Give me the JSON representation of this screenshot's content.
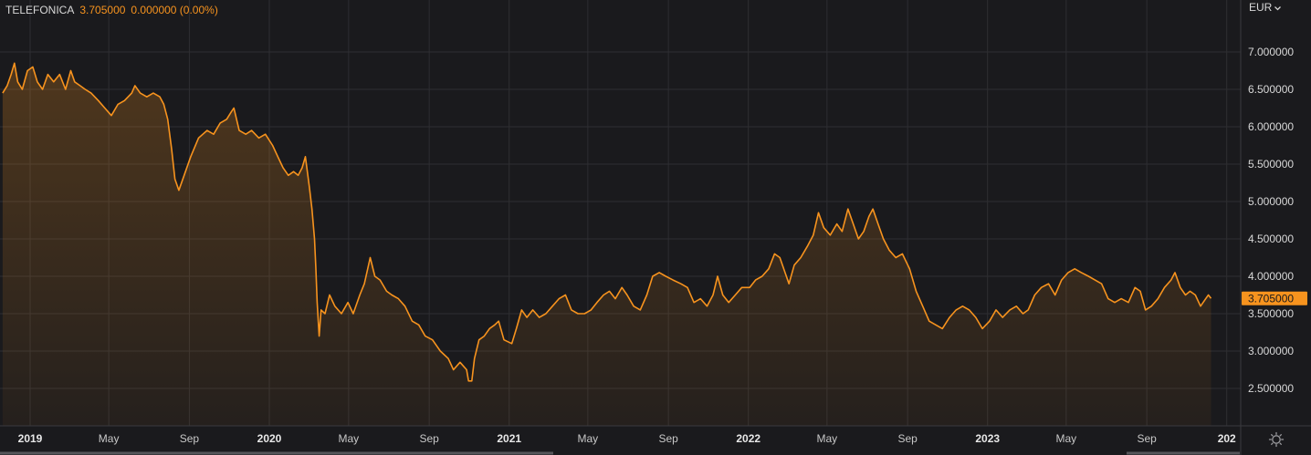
{
  "legend": {
    "symbol": "TELEFONICA",
    "price": "3.705000",
    "change": "0.000000 (0.00%)"
  },
  "currency": {
    "label": "EUR",
    "icon": "chevron-down-icon"
  },
  "settings": {
    "icon": "gear-icon"
  },
  "colors": {
    "background": "#1a1a1d",
    "line": "#f7931e",
    "grid": "#2e2e32",
    "text": "#d8d8d8",
    "price_tag_bg": "#f7931e"
  },
  "chart_data": {
    "type": "area",
    "series_name": "TELEFONICA",
    "currency": "EUR",
    "grid": true,
    "ylim": [
      2.3,
      7.55
    ],
    "y_ticks": [
      "7.000000",
      "6.500000",
      "6.000000",
      "5.500000",
      "5.000000",
      "4.500000",
      "4.000000",
      "3.500000",
      "3.000000",
      "2.500000"
    ],
    "last_price": "3.705000",
    "x_ticks": [
      {
        "label": "2019",
        "date": "2019-01-01",
        "bold": true
      },
      {
        "label": "May",
        "date": "2019-05-01",
        "bold": false
      },
      {
        "label": "Sep",
        "date": "2019-09-01",
        "bold": false
      },
      {
        "label": "2020",
        "date": "2020-01-01",
        "bold": true
      },
      {
        "label": "May",
        "date": "2020-05-01",
        "bold": false
      },
      {
        "label": "Sep",
        "date": "2020-09-01",
        "bold": false
      },
      {
        "label": "2021",
        "date": "2021-01-01",
        "bold": true
      },
      {
        "label": "May",
        "date": "2021-05-01",
        "bold": false
      },
      {
        "label": "Sep",
        "date": "2021-09-01",
        "bold": false
      },
      {
        "label": "2022",
        "date": "2022-01-01",
        "bold": true
      },
      {
        "label": "May",
        "date": "2022-05-01",
        "bold": false
      },
      {
        "label": "Sep",
        "date": "2022-09-01",
        "bold": false
      },
      {
        "label": "2023",
        "date": "2023-01-01",
        "bold": true
      },
      {
        "label": "May",
        "date": "2023-05-01",
        "bold": false
      },
      {
        "label": "Sep",
        "date": "2023-09-01",
        "bold": false
      },
      {
        "label": "202",
        "date": "2024-01-01",
        "bold": true
      }
    ],
    "points": [
      [
        "2018-11-20",
        6.45
      ],
      [
        "2018-11-27",
        6.55
      ],
      [
        "2018-12-03",
        6.7
      ],
      [
        "2018-12-08",
        6.85
      ],
      [
        "2018-12-13",
        6.6
      ],
      [
        "2018-12-20",
        6.5
      ],
      [
        "2018-12-28",
        6.75
      ],
      [
        "2019-01-05",
        6.8
      ],
      [
        "2019-01-12",
        6.6
      ],
      [
        "2019-01-20",
        6.5
      ],
      [
        "2019-01-28",
        6.7
      ],
      [
        "2019-02-06",
        6.6
      ],
      [
        "2019-02-15",
        6.7
      ],
      [
        "2019-02-24",
        6.5
      ],
      [
        "2019-03-04",
        6.75
      ],
      [
        "2019-03-10",
        6.6
      ],
      [
        "2019-03-18",
        6.55
      ],
      [
        "2019-03-26",
        6.5
      ],
      [
        "2019-04-04",
        6.45
      ],
      [
        "2019-04-15",
        6.35
      ],
      [
        "2019-04-25",
        6.25
      ],
      [
        "2019-05-05",
        6.15
      ],
      [
        "2019-05-15",
        6.3
      ],
      [
        "2019-05-25",
        6.35
      ],
      [
        "2019-06-05",
        6.45
      ],
      [
        "2019-06-10",
        6.55
      ],
      [
        "2019-06-18",
        6.45
      ],
      [
        "2019-06-28",
        6.4
      ],
      [
        "2019-07-08",
        6.45
      ],
      [
        "2019-07-18",
        6.4
      ],
      [
        "2019-07-24",
        6.3
      ],
      [
        "2019-07-30",
        6.1
      ],
      [
        "2019-08-05",
        5.7
      ],
      [
        "2019-08-10",
        5.3
      ],
      [
        "2019-08-16",
        5.15
      ],
      [
        "2019-08-24",
        5.35
      ],
      [
        "2019-09-03",
        5.6
      ],
      [
        "2019-09-15",
        5.85
      ],
      [
        "2019-09-28",
        5.95
      ],
      [
        "2019-10-08",
        5.9
      ],
      [
        "2019-10-18",
        6.05
      ],
      [
        "2019-10-28",
        6.1
      ],
      [
        "2019-11-04",
        6.2
      ],
      [
        "2019-11-08",
        6.25
      ],
      [
        "2019-11-16",
        5.95
      ],
      [
        "2019-11-26",
        5.9
      ],
      [
        "2019-12-05",
        5.95
      ],
      [
        "2019-12-16",
        5.85
      ],
      [
        "2019-12-26",
        5.9
      ],
      [
        "2020-01-06",
        5.75
      ],
      [
        "2020-01-14",
        5.6
      ],
      [
        "2020-01-22",
        5.45
      ],
      [
        "2020-01-30",
        5.35
      ],
      [
        "2020-02-07",
        5.4
      ],
      [
        "2020-02-14",
        5.35
      ],
      [
        "2020-02-20",
        5.45
      ],
      [
        "2020-02-25",
        5.6
      ],
      [
        "2020-03-02",
        5.2
      ],
      [
        "2020-03-06",
        4.9
      ],
      [
        "2020-03-10",
        4.5
      ],
      [
        "2020-03-12",
        4.1
      ],
      [
        "2020-03-14",
        3.65
      ],
      [
        "2020-03-17",
        3.2
      ],
      [
        "2020-03-20",
        3.55
      ],
      [
        "2020-03-26",
        3.5
      ],
      [
        "2020-04-02",
        3.75
      ],
      [
        "2020-04-10",
        3.6
      ],
      [
        "2020-04-20",
        3.5
      ],
      [
        "2020-04-30",
        3.65
      ],
      [
        "2020-05-08",
        3.5
      ],
      [
        "2020-05-18",
        3.75
      ],
      [
        "2020-05-25",
        3.9
      ],
      [
        "2020-06-03",
        4.25
      ],
      [
        "2020-06-10",
        4.0
      ],
      [
        "2020-06-18",
        3.95
      ],
      [
        "2020-06-28",
        3.8
      ],
      [
        "2020-07-06",
        3.75
      ],
      [
        "2020-07-16",
        3.7
      ],
      [
        "2020-07-26",
        3.6
      ],
      [
        "2020-08-06",
        3.4
      ],
      [
        "2020-08-16",
        3.35
      ],
      [
        "2020-08-26",
        3.2
      ],
      [
        "2020-09-06",
        3.15
      ],
      [
        "2020-09-18",
        3.0
      ],
      [
        "2020-09-30",
        2.9
      ],
      [
        "2020-10-08",
        2.75
      ],
      [
        "2020-10-18",
        2.85
      ],
      [
        "2020-10-28",
        2.75
      ],
      [
        "2020-10-31",
        2.6
      ],
      [
        "2020-11-05",
        2.6
      ],
      [
        "2020-11-09",
        2.9
      ],
      [
        "2020-11-16",
        3.15
      ],
      [
        "2020-11-24",
        3.2
      ],
      [
        "2020-12-02",
        3.3
      ],
      [
        "2020-12-10",
        3.35
      ],
      [
        "2020-12-16",
        3.4
      ],
      [
        "2020-12-24",
        3.15
      ],
      [
        "2021-01-05",
        3.1
      ],
      [
        "2021-01-12",
        3.3
      ],
      [
        "2021-01-20",
        3.55
      ],
      [
        "2021-01-28",
        3.45
      ],
      [
        "2021-02-06",
        3.55
      ],
      [
        "2021-02-16",
        3.45
      ],
      [
        "2021-02-26",
        3.5
      ],
      [
        "2021-03-08",
        3.6
      ],
      [
        "2021-03-18",
        3.7
      ],
      [
        "2021-03-28",
        3.75
      ],
      [
        "2021-04-06",
        3.55
      ],
      [
        "2021-04-16",
        3.5
      ],
      [
        "2021-04-26",
        3.5
      ],
      [
        "2021-05-06",
        3.55
      ],
      [
        "2021-05-15",
        3.65
      ],
      [
        "2021-05-25",
        3.75
      ],
      [
        "2021-06-03",
        3.8
      ],
      [
        "2021-06-12",
        3.7
      ],
      [
        "2021-06-22",
        3.85
      ],
      [
        "2021-06-30",
        3.75
      ],
      [
        "2021-07-10",
        3.6
      ],
      [
        "2021-07-20",
        3.55
      ],
      [
        "2021-07-30",
        3.75
      ],
      [
        "2021-08-08",
        4.0
      ],
      [
        "2021-08-18",
        4.05
      ],
      [
        "2021-08-28",
        4.0
      ],
      [
        "2021-09-08",
        3.95
      ],
      [
        "2021-09-20",
        3.9
      ],
      [
        "2021-09-30",
        3.85
      ],
      [
        "2021-10-10",
        3.65
      ],
      [
        "2021-10-20",
        3.7
      ],
      [
        "2021-10-30",
        3.6
      ],
      [
        "2021-11-08",
        3.75
      ],
      [
        "2021-11-15",
        4.0
      ],
      [
        "2021-11-23",
        3.75
      ],
      [
        "2021-12-02",
        3.65
      ],
      [
        "2021-12-12",
        3.75
      ],
      [
        "2021-12-22",
        3.85
      ],
      [
        "2022-01-03",
        3.85
      ],
      [
        "2022-01-12",
        3.95
      ],
      [
        "2022-01-22",
        4.0
      ],
      [
        "2022-02-01",
        4.1
      ],
      [
        "2022-02-10",
        4.3
      ],
      [
        "2022-02-18",
        4.25
      ],
      [
        "2022-02-26",
        4.05
      ],
      [
        "2022-03-04",
        3.9
      ],
      [
        "2022-03-12",
        4.15
      ],
      [
        "2022-03-22",
        4.25
      ],
      [
        "2022-04-01",
        4.4
      ],
      [
        "2022-04-10",
        4.55
      ],
      [
        "2022-04-18",
        4.85
      ],
      [
        "2022-04-26",
        4.65
      ],
      [
        "2022-05-06",
        4.55
      ],
      [
        "2022-05-16",
        4.7
      ],
      [
        "2022-05-24",
        4.6
      ],
      [
        "2022-06-02",
        4.9
      ],
      [
        "2022-06-10",
        4.7
      ],
      [
        "2022-06-18",
        4.5
      ],
      [
        "2022-06-26",
        4.6
      ],
      [
        "2022-07-04",
        4.8
      ],
      [
        "2022-07-10",
        4.9
      ],
      [
        "2022-07-18",
        4.7
      ],
      [
        "2022-07-26",
        4.5
      ],
      [
        "2022-08-04",
        4.35
      ],
      [
        "2022-08-14",
        4.25
      ],
      [
        "2022-08-24",
        4.3
      ],
      [
        "2022-09-04",
        4.1
      ],
      [
        "2022-09-14",
        3.8
      ],
      [
        "2022-09-24",
        3.6
      ],
      [
        "2022-10-04",
        3.4
      ],
      [
        "2022-10-14",
        3.35
      ],
      [
        "2022-10-24",
        3.3
      ],
      [
        "2022-11-04",
        3.45
      ],
      [
        "2022-11-14",
        3.55
      ],
      [
        "2022-11-24",
        3.6
      ],
      [
        "2022-12-04",
        3.55
      ],
      [
        "2022-12-14",
        3.45
      ],
      [
        "2022-12-24",
        3.3
      ],
      [
        "2023-01-04",
        3.4
      ],
      [
        "2023-01-14",
        3.55
      ],
      [
        "2023-01-24",
        3.45
      ],
      [
        "2023-02-04",
        3.55
      ],
      [
        "2023-02-14",
        3.6
      ],
      [
        "2023-02-24",
        3.5
      ],
      [
        "2023-03-04",
        3.55
      ],
      [
        "2023-03-14",
        3.75
      ],
      [
        "2023-03-24",
        3.85
      ],
      [
        "2023-04-04",
        3.9
      ],
      [
        "2023-04-14",
        3.75
      ],
      [
        "2023-04-24",
        3.95
      ],
      [
        "2023-05-04",
        4.05
      ],
      [
        "2023-05-14",
        4.1
      ],
      [
        "2023-05-24",
        4.05
      ],
      [
        "2023-06-04",
        4.0
      ],
      [
        "2023-06-14",
        3.95
      ],
      [
        "2023-06-24",
        3.9
      ],
      [
        "2023-07-04",
        3.7
      ],
      [
        "2023-07-14",
        3.65
      ],
      [
        "2023-07-24",
        3.7
      ],
      [
        "2023-08-04",
        3.65
      ],
      [
        "2023-08-14",
        3.85
      ],
      [
        "2023-08-22",
        3.8
      ],
      [
        "2023-08-30",
        3.55
      ],
      [
        "2023-09-08",
        3.6
      ],
      [
        "2023-09-18",
        3.7
      ],
      [
        "2023-09-28",
        3.85
      ],
      [
        "2023-10-08",
        3.95
      ],
      [
        "2023-10-14",
        4.05
      ],
      [
        "2023-10-22",
        3.85
      ],
      [
        "2023-10-30",
        3.75
      ],
      [
        "2023-11-06",
        3.8
      ],
      [
        "2023-11-14",
        3.75
      ],
      [
        "2023-11-22",
        3.6
      ],
      [
        "2023-11-30",
        3.7
      ],
      [
        "2023-12-04",
        3.75
      ],
      [
        "2023-12-08",
        3.705
      ]
    ]
  }
}
